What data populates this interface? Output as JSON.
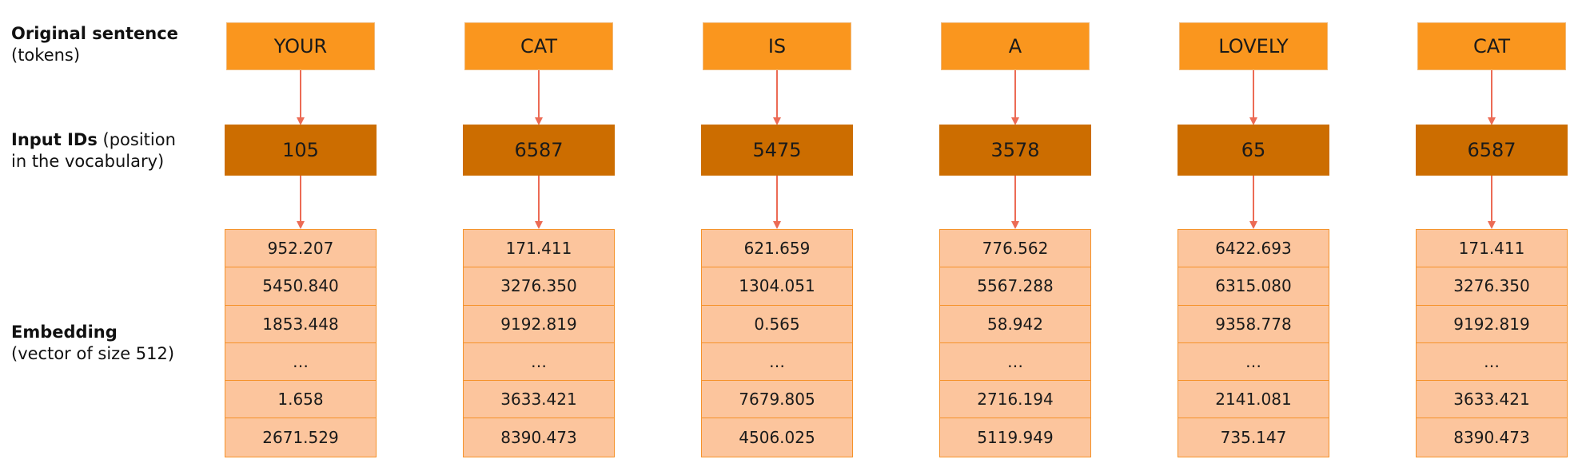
{
  "labels": {
    "tokens_bold": "Original sentence",
    "tokens_sub": "(tokens)",
    "ids_bold": "Input IDs",
    "ids_rest": " (position in the vocabulary)",
    "emb_bold": "Embedding",
    "emb_sub": "(vector of size 512)"
  },
  "colors": {
    "token_box": "#fa961e",
    "id_box": "#cc6d00",
    "embedding_cell": "#fcc59d",
    "embedding_border": "#f5922a",
    "arrow": "#ec6b55"
  },
  "columns": [
    {
      "token": "YOUR",
      "id": "105",
      "embedding": [
        "952.207",
        "5450.840",
        "1853.448",
        "…",
        "1.658",
        "2671.529"
      ]
    },
    {
      "token": "CAT",
      "id": "6587",
      "embedding": [
        "171.411",
        "3276.350",
        "9192.819",
        "…",
        "3633.421",
        "8390.473"
      ]
    },
    {
      "token": "IS",
      "id": "5475",
      "embedding": [
        "621.659",
        "1304.051",
        "0.565",
        "…",
        "7679.805",
        "4506.025"
      ]
    },
    {
      "token": "A",
      "id": "3578",
      "embedding": [
        "776.562",
        "5567.288",
        "58.942",
        "…",
        "2716.194",
        "5119.949"
      ]
    },
    {
      "token": "LOVELY",
      "id": "65",
      "embedding": [
        "6422.693",
        "6315.080",
        "9358.778",
        "…",
        "2141.081",
        "735.147"
      ]
    },
    {
      "token": "CAT",
      "id": "6587",
      "embedding": [
        "171.411",
        "3276.350",
        "9192.819",
        "…",
        "3633.421",
        "8390.473"
      ]
    }
  ]
}
